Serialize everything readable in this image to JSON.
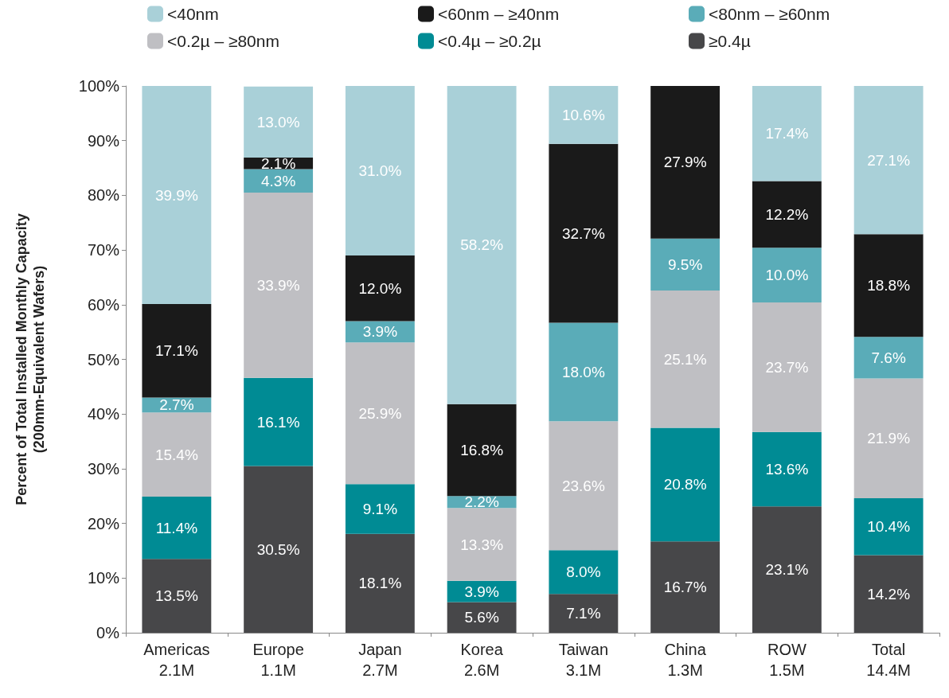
{
  "chart_data": {
    "type": "bar",
    "stacked": true,
    "ylabel": "Percent of Total Installed Monthly Capacity\n(200mm-Equivalent Wafers)",
    "categories": [
      "Americas\n2.1M",
      "Europe\n1.1M",
      "Japan\n2.7M",
      "Korea\n2.6M",
      "Taiwan\n3.1M",
      "China\n1.3M",
      "ROW\n1.5M",
      "Total\n14.4M"
    ],
    "series": [
      {
        "name": "≥0.4µ",
        "color": "#474749",
        "values": [
          13.5,
          30.5,
          18.1,
          5.6,
          7.1,
          16.7,
          23.1,
          14.2
        ],
        "value_labels": [
          "13.5%",
          "30.5%",
          "18.1%",
          "5.6%",
          "7.1%",
          "16.7%",
          "23.1%",
          "14.2%"
        ]
      },
      {
        "name": "<0.4µ – ≥0.2µ",
        "color": "#008b94",
        "values": [
          11.4,
          16.1,
          9.1,
          3.9,
          8.0,
          20.8,
          13.6,
          10.4
        ],
        "value_labels": [
          "11.4%",
          "16.1%",
          "9.1%",
          "3.9%",
          "8.0%",
          "20.8%",
          "13.6%",
          "10.4%"
        ]
      },
      {
        "name": "<0.2µ – ≥80nm",
        "color": "#bfbfc3",
        "values": [
          15.4,
          33.9,
          25.9,
          13.3,
          23.6,
          25.1,
          23.7,
          21.9
        ],
        "value_labels": [
          "15.4%",
          "33.9%",
          "25.9%",
          "13.3%",
          "23.6%",
          "25.1%",
          "23.7%",
          "21.9%"
        ]
      },
      {
        "name": "<80nm – ≥60nm",
        "color": "#5aacb8",
        "values": [
          2.7,
          4.3,
          3.9,
          2.2,
          18.0,
          9.5,
          10.0,
          7.6
        ],
        "value_labels": [
          "2.7%",
          "4.3%",
          "3.9%",
          "2.2%",
          "18.0%",
          "9.5%",
          "10.0%",
          "7.6%"
        ]
      },
      {
        "name": "<60nm – ≥40nm",
        "color": "#1a1a1a",
        "values": [
          17.1,
          2.1,
          12.0,
          16.8,
          32.7,
          27.9,
          12.2,
          18.8
        ],
        "value_labels": [
          "17.1%",
          "2.1%",
          "12.0%",
          "16.8%",
          "32.7%",
          "27.9%",
          "12.2%",
          "18.8%"
        ]
      },
      {
        "name": "<40nm",
        "color": "#a9d0d8",
        "values": [
          39.9,
          13.0,
          31.0,
          58.2,
          10.6,
          null,
          17.4,
          27.1
        ],
        "value_labels": [
          "39.9%",
          "13.0%",
          "31.0%",
          "58.2%",
          "10.6%",
          null,
          "17.4%",
          "27.1%"
        ]
      }
    ],
    "ylim": [
      0,
      100
    ],
    "yticks": [
      {
        "value": 0,
        "label": "0%"
      },
      {
        "value": 10,
        "label": "10%"
      },
      {
        "value": 20,
        "label": "20%"
      },
      {
        "value": 30,
        "label": "30%"
      },
      {
        "value": 40,
        "label": "40%"
      },
      {
        "value": 50,
        "label": "50%"
      },
      {
        "value": 60,
        "label": "60%"
      },
      {
        "value": 70,
        "label": "70%"
      },
      {
        "value": 80,
        "label": "80%"
      },
      {
        "value": 90,
        "label": "90%"
      },
      {
        "value": 100,
        "label": "100%"
      }
    ],
    "grid": false,
    "legend": "top"
  }
}
